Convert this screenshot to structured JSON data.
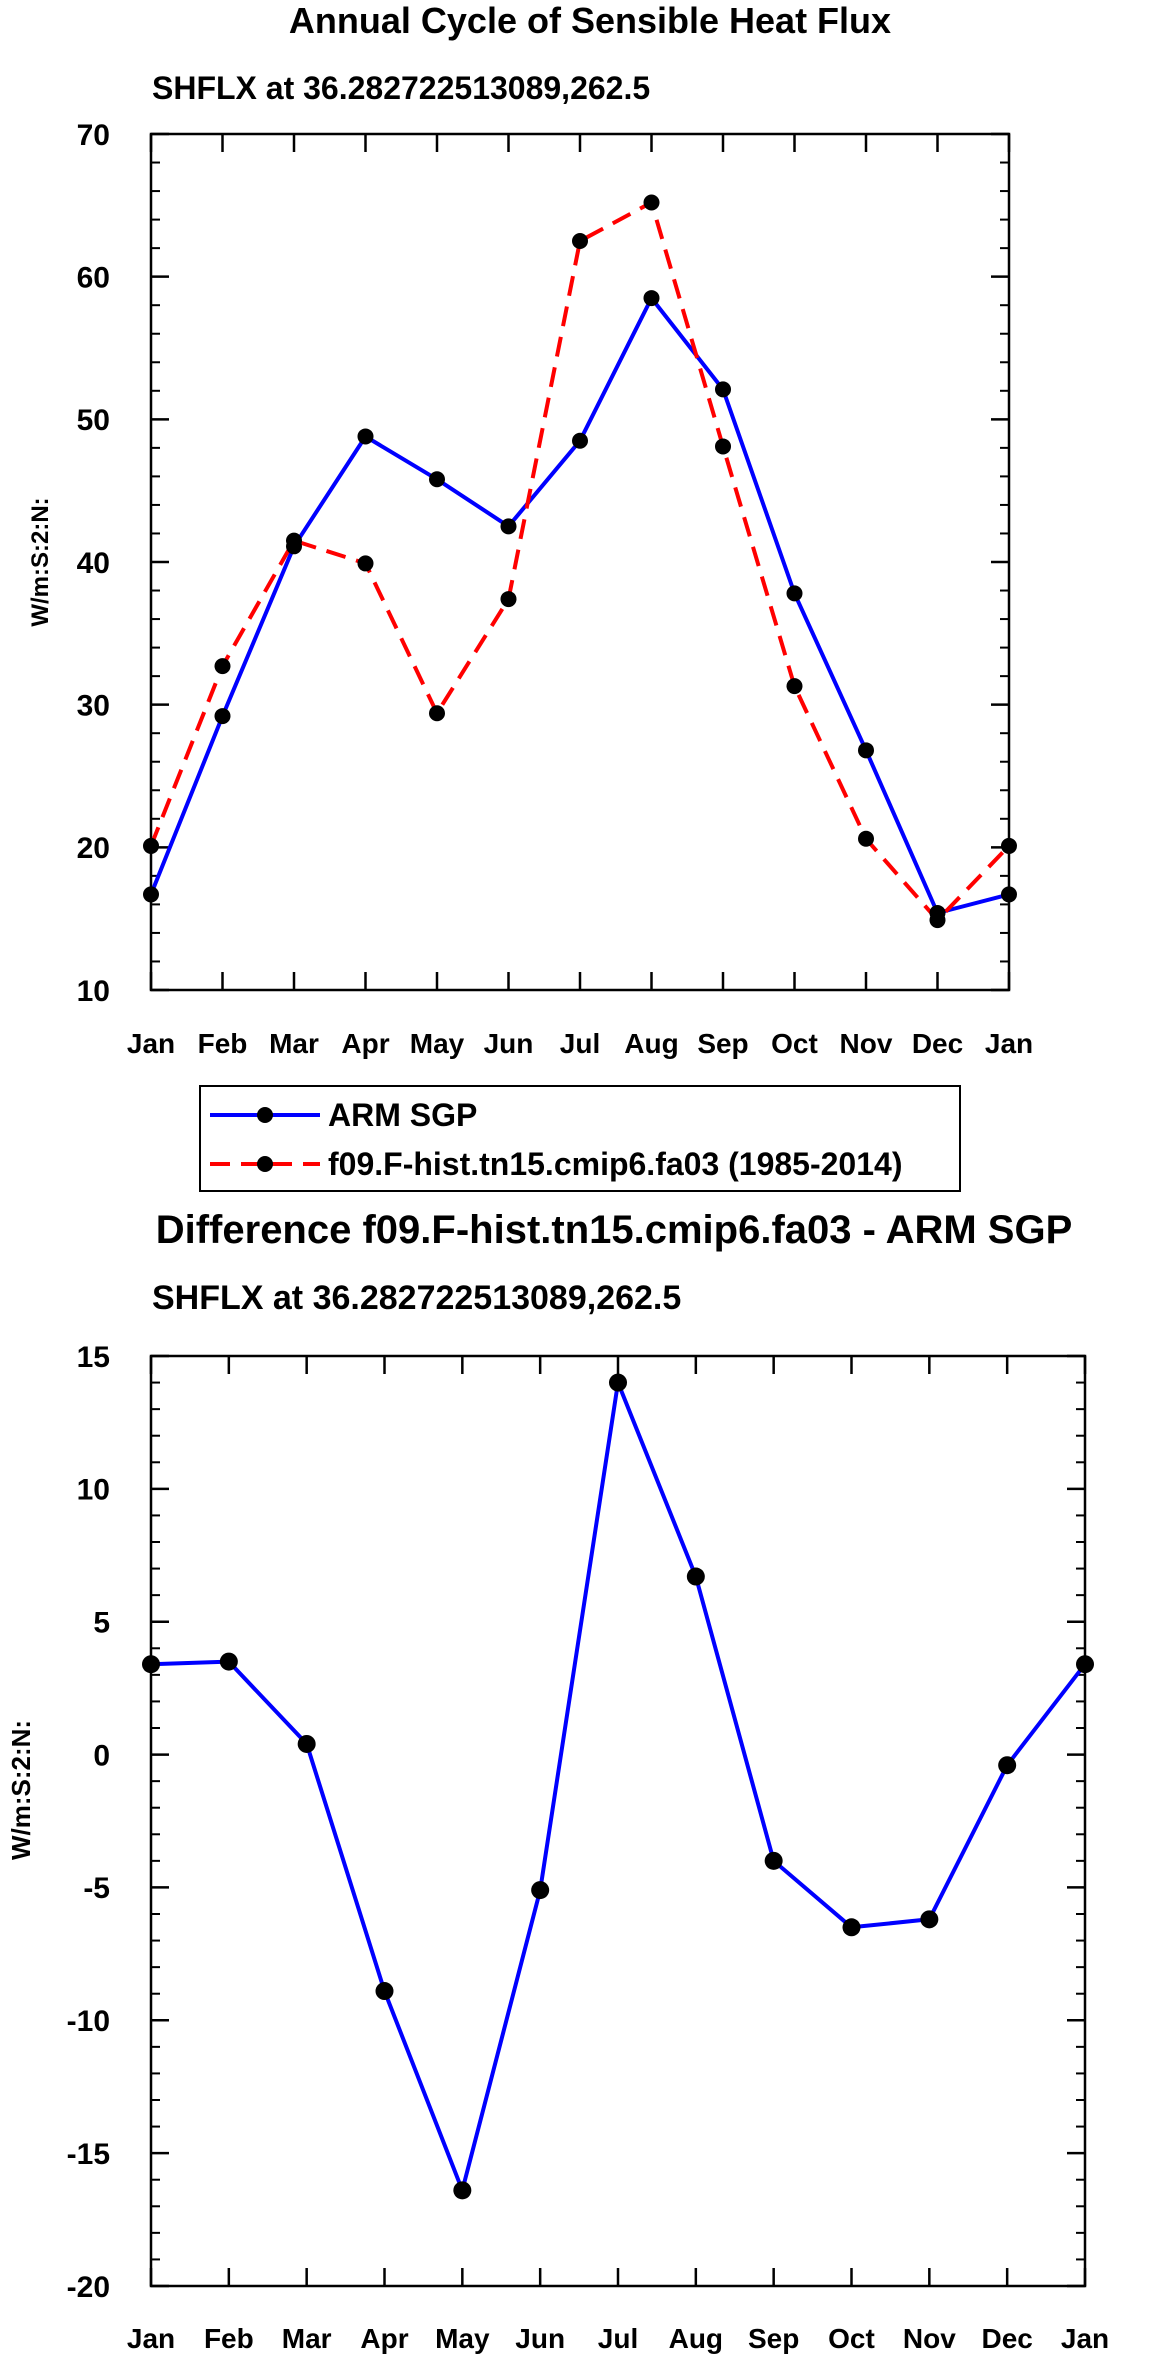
{
  "chart_data": [
    {
      "type": "line",
      "title": "Annual Cycle of Sensible Heat Flux",
      "subtitle": "SHFLX at 36.282722513089,262.5",
      "xlabel": "",
      "ylabel": "W/m:S:2:N:",
      "categories": [
        "Jan",
        "Feb",
        "Mar",
        "Apr",
        "May",
        "Jun",
        "Jul",
        "Aug",
        "Sep",
        "Oct",
        "Nov",
        "Dec",
        "Jan"
      ],
      "ylim": [
        10,
        70
      ],
      "yticks": [
        10,
        20,
        30,
        40,
        50,
        60,
        70
      ],
      "series": [
        {
          "name": "ARM SGP",
          "color": "#0000ff",
          "dash": "solid",
          "values": [
            16.7,
            29.2,
            41.1,
            48.8,
            45.8,
            42.5,
            48.5,
            58.5,
            52.1,
            37.8,
            26.8,
            15.4,
            16.7
          ]
        },
        {
          "name": "f09.F-hist.tn15.cmip6.fa03 (1985-2014)",
          "color": "#ff0000",
          "dash": "dashed",
          "values": [
            20.1,
            32.7,
            41.5,
            39.9,
            29.4,
            37.4,
            62.5,
            65.2,
            48.1,
            31.3,
            20.6,
            14.9,
            20.1
          ]
        }
      ],
      "legend_position": "below"
    },
    {
      "type": "line",
      "title": "Difference f09.F-hist.tn15.cmip6.fa03 - ARM SGP",
      "subtitle": "SHFLX at 36.282722513089,262.5",
      "xlabel": "",
      "ylabel": "W/m:S:2:N:",
      "categories": [
        "Jan",
        "Feb",
        "Mar",
        "Apr",
        "May",
        "Jun",
        "Jul",
        "Aug",
        "Sep",
        "Oct",
        "Nov",
        "Dec",
        "Jan"
      ],
      "ylim": [
        -20,
        15
      ],
      "yticks": [
        -20,
        -15,
        -10,
        -5,
        0,
        5,
        10,
        15
      ],
      "series": [
        {
          "name": "Difference",
          "color": "#0000ff",
          "dash": "solid",
          "values": [
            3.4,
            3.5,
            0.4,
            -8.9,
            -16.4,
            -5.1,
            14.0,
            6.7,
            -4.0,
            -6.5,
            -6.2,
            -0.4,
            3.4
          ]
        }
      ]
    }
  ]
}
